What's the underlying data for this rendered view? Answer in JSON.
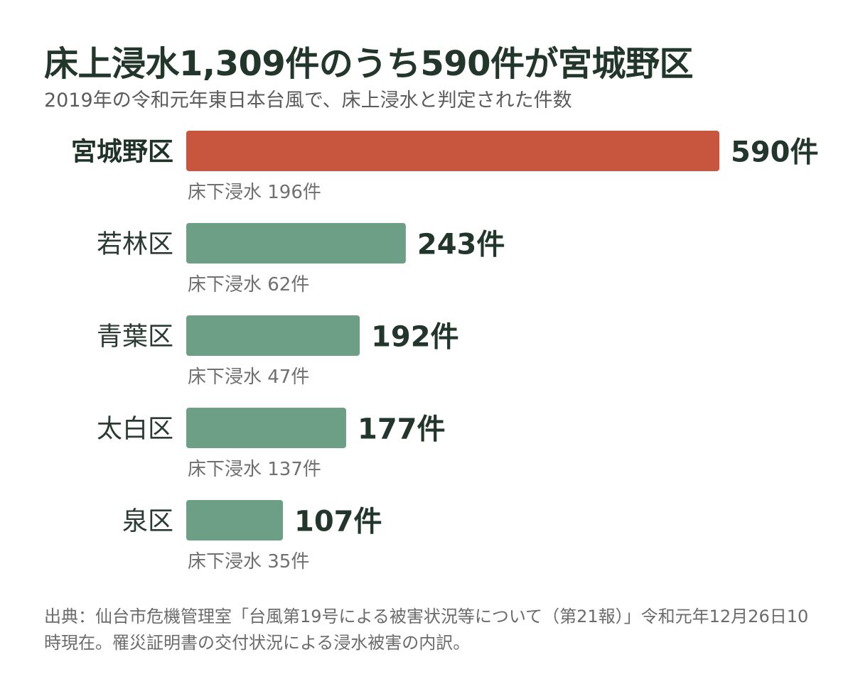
{
  "title": "床上浸水1,309件のうち590件が宮城野区",
  "subtitle": "2019年の令和元年東日本台風で、床上浸水と判定された件数",
  "source": "出典：仙台市危機管理室「台風第19号による被害状況等について（第21報）」令和元年12月26日10時現在。罹災証明書の交付状況による浸水被害の内訳。",
  "colors": {
    "highlight": "#c8553d",
    "bar": "#6c9f86",
    "text": "#22362c",
    "subtext": "#707070"
  },
  "chart_data": {
    "type": "bar",
    "orientation": "horizontal",
    "title": "床上浸水1,309件のうち590件が宮城野区",
    "subtitle": "2019年の令和元年東日本台風で、床上浸水と判定された件数",
    "categories": [
      "宮城野区",
      "若林区",
      "青葉区",
      "太白区",
      "泉区"
    ],
    "values": [
      590,
      243,
      192,
      177,
      107
    ],
    "value_labels": [
      "590件",
      "243件",
      "192件",
      "177件",
      "107件"
    ],
    "secondary_labels": [
      "床下浸水 196件",
      "床下浸水 62件",
      "床下浸水 47件",
      "床下浸水 137件",
      "床下浸水 35件"
    ],
    "secondary_values": [
      196,
      62,
      47,
      137,
      35
    ],
    "highlight_index": 0,
    "xlim": [
      0,
      590
    ],
    "grid": false,
    "legend": "none"
  }
}
